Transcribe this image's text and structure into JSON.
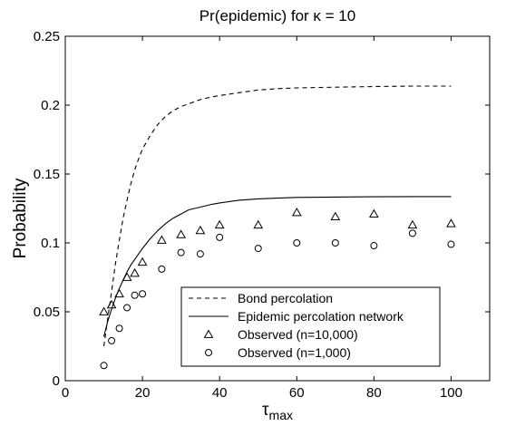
{
  "chart_data": {
    "type": "line",
    "title": "Pr(epidemic) for κ = 10",
    "xlabel": "τ",
    "xlabel_sub": "max",
    "ylabel": "Probability",
    "xlim": [
      0,
      110
    ],
    "ylim": [
      0,
      0.25
    ],
    "xticks": [
      0,
      20,
      40,
      60,
      80,
      100
    ],
    "xtick_labels": [
      "0",
      "20",
      "40",
      "60",
      "80",
      "100"
    ],
    "yticks": [
      0,
      0.05,
      0.1,
      0.15,
      0.2,
      0.25
    ],
    "ytick_labels": [
      "0",
      "0.05",
      "0.1",
      "0.15",
      "0.2",
      "0.25"
    ],
    "grid": false,
    "legend_position": "bottom-right",
    "series": [
      {
        "name": "Bond percolation",
        "style": "dashed-line",
        "color": "#000000",
        "x": [
          10,
          11,
          12,
          13,
          14,
          15,
          16,
          17,
          18,
          19,
          20,
          22,
          24,
          26,
          28,
          30,
          32,
          35,
          38,
          40,
          45,
          50,
          55,
          60,
          70,
          80,
          90,
          100
        ],
        "y": [
          0.025,
          0.045,
          0.065,
          0.085,
          0.102,
          0.118,
          0.131,
          0.143,
          0.153,
          0.161,
          0.168,
          0.178,
          0.186,
          0.192,
          0.196,
          0.199,
          0.201,
          0.204,
          0.206,
          0.207,
          0.209,
          0.211,
          0.212,
          0.2125,
          0.213,
          0.2135,
          0.2138,
          0.2138
        ]
      },
      {
        "name": "Epidemic percolation network",
        "style": "solid-line",
        "color": "#000000",
        "x": [
          10,
          11,
          12,
          13,
          14,
          15,
          16,
          17,
          18,
          19,
          20,
          22,
          24,
          26,
          28,
          30,
          32,
          35,
          38,
          40,
          45,
          50,
          55,
          60,
          70,
          80,
          90,
          100
        ],
        "y": [
          0.032,
          0.043,
          0.052,
          0.06,
          0.067,
          0.073,
          0.079,
          0.084,
          0.088,
          0.092,
          0.096,
          0.103,
          0.109,
          0.114,
          0.118,
          0.121,
          0.124,
          0.126,
          0.128,
          0.129,
          0.131,
          0.132,
          0.1325,
          0.133,
          0.1333,
          0.1335,
          0.1336,
          0.1336
        ]
      },
      {
        "name": "Observed (n=10,000)",
        "style": "triangle-marker",
        "color": "#000000",
        "x": [
          10,
          12,
          14,
          16,
          18,
          20,
          25,
          30,
          35,
          40,
          50,
          60,
          70,
          80,
          90,
          100
        ],
        "y": [
          0.05,
          0.055,
          0.063,
          0.075,
          0.078,
          0.086,
          0.102,
          0.106,
          0.109,
          0.113,
          0.113,
          0.122,
          0.119,
          0.121,
          0.113,
          0.114
        ]
      },
      {
        "name": "Observed (n=1,000)",
        "style": "circle-marker",
        "color": "#000000",
        "x": [
          10,
          12,
          14,
          16,
          18,
          20,
          25,
          30,
          35,
          40,
          50,
          60,
          70,
          80,
          90,
          100
        ],
        "y": [
          0.011,
          0.029,
          0.038,
          0.053,
          0.062,
          0.063,
          0.081,
          0.093,
          0.092,
          0.104,
          0.096,
          0.1,
          0.1,
          0.098,
          0.107,
          0.099
        ]
      }
    ]
  }
}
